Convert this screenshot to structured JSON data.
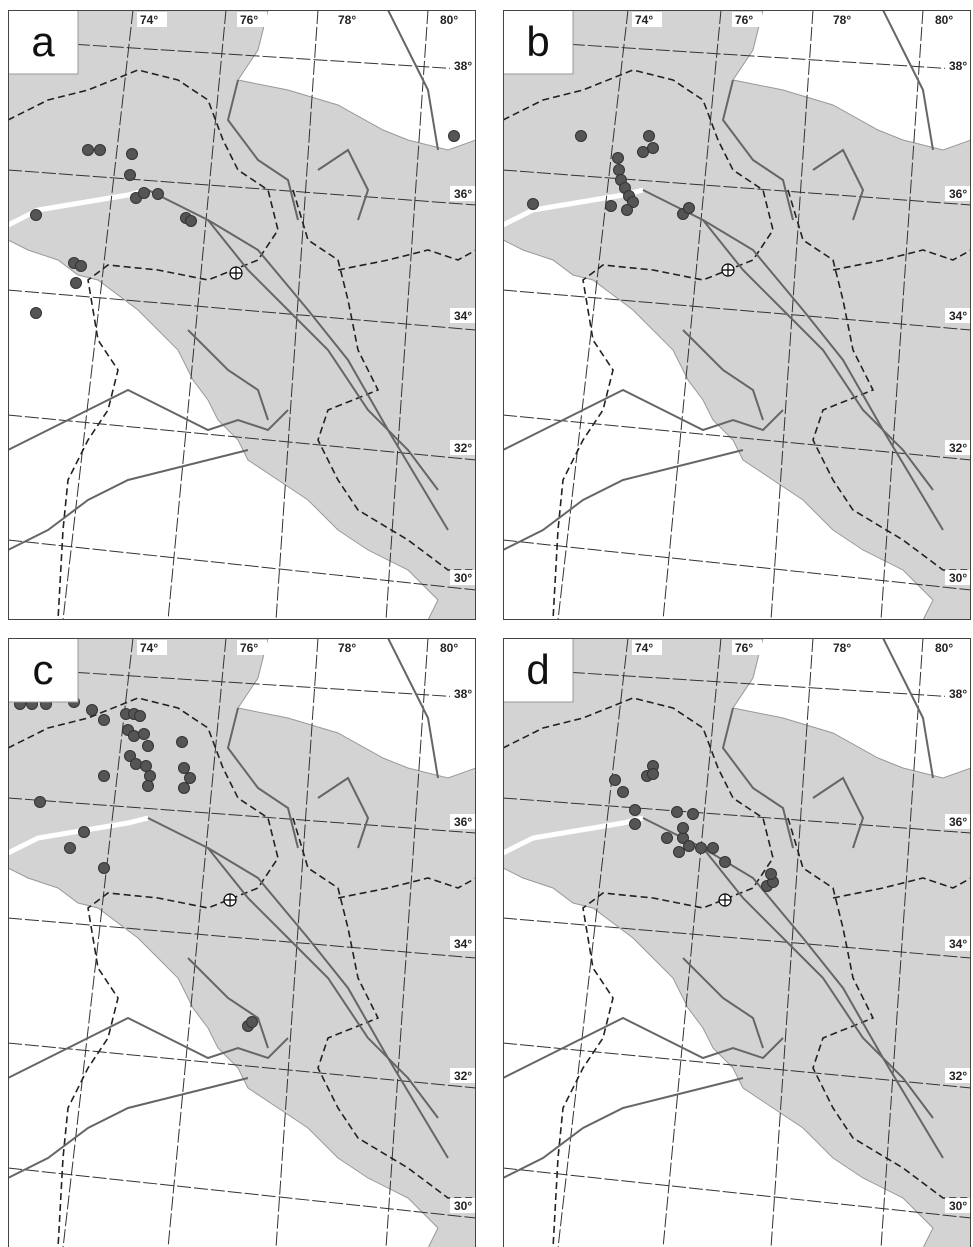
{
  "panels": [
    {
      "label": "a",
      "lon_labels": [
        "74°",
        "76°",
        "78°",
        "80°"
      ],
      "lat_labels": [
        "38°",
        "36°",
        "34°",
        "32°",
        "30°"
      ]
    },
    {
      "label": "b",
      "lon_labels": [
        "74°",
        "76°",
        "78°",
        "80°"
      ],
      "lat_labels": [
        "38°",
        "36°",
        "34°",
        "32°",
        "30°"
      ]
    },
    {
      "label": "c",
      "lon_labels": [
        "74°",
        "76°",
        "78°",
        "80°"
      ],
      "lat_labels": [
        "38°",
        "36°",
        "34°",
        "32°",
        "30°"
      ]
    },
    {
      "label": "d",
      "lon_labels": [
        "74°",
        "76°",
        "78°",
        "80°"
      ],
      "lat_labels": [
        "38°",
        "36°",
        "34°",
        "32°",
        "30°"
      ]
    }
  ]
}
